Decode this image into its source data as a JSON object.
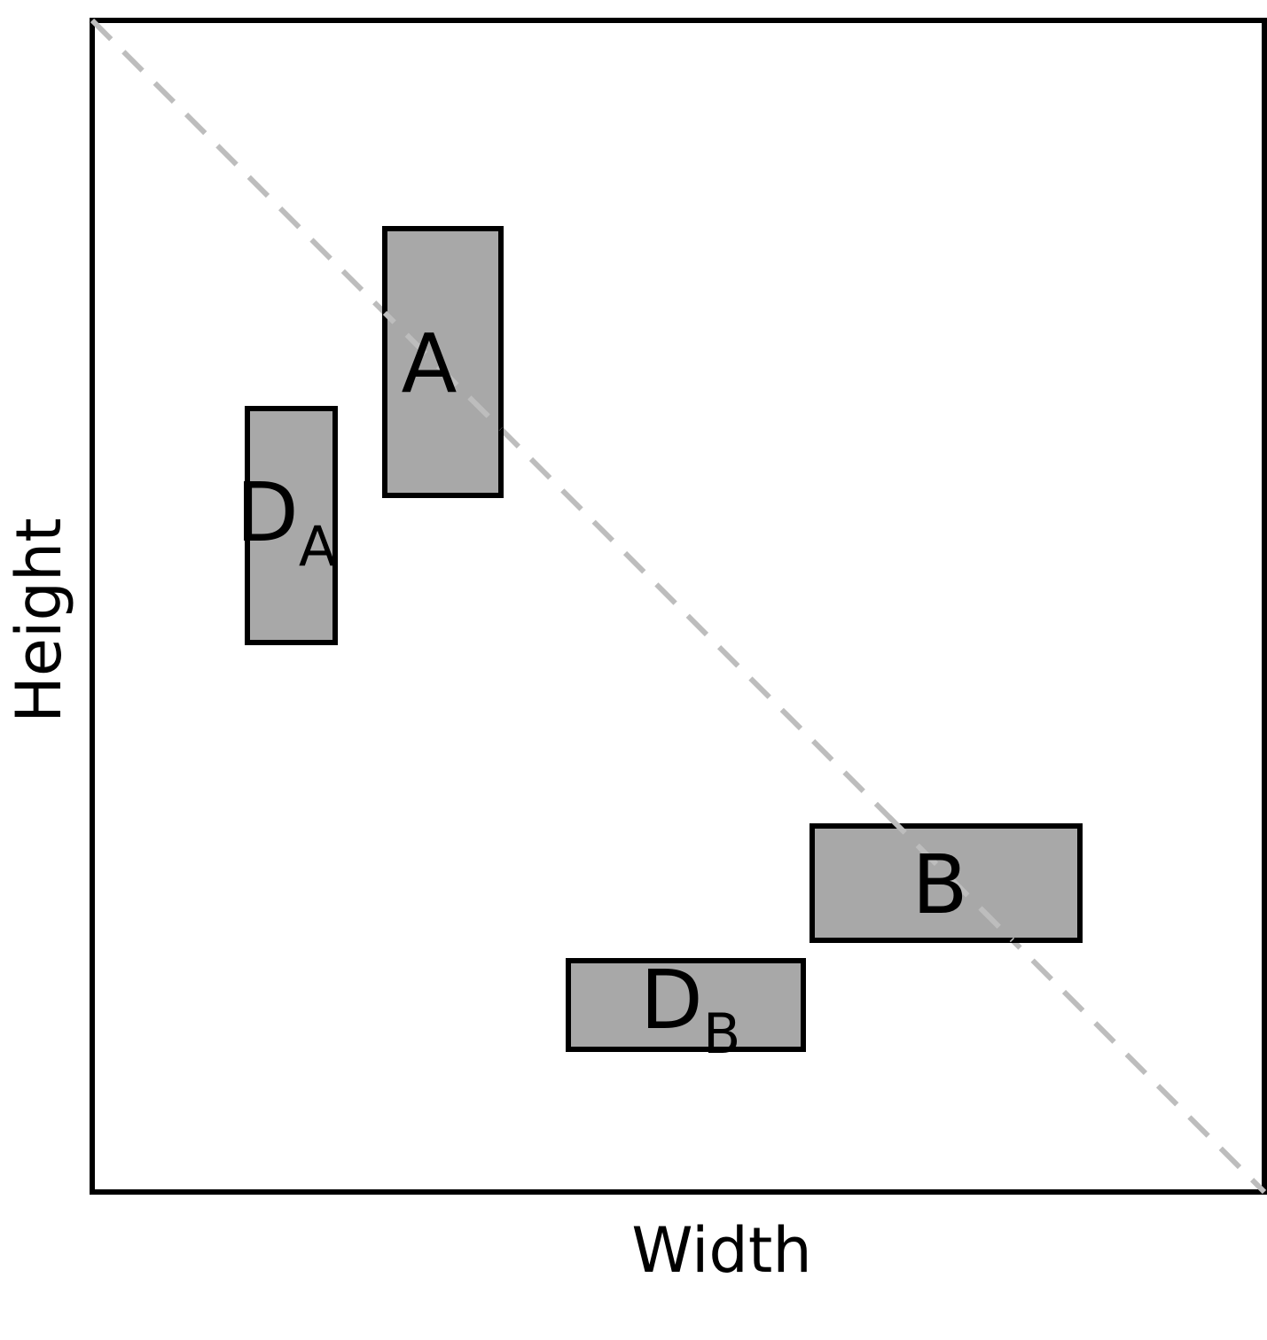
{
  "axes": {
    "x_label": "Width",
    "y_label": "Height"
  },
  "boxes": [
    {
      "id": "a",
      "label": "A",
      "subscript": ""
    },
    {
      "id": "da",
      "label": "D",
      "subscript": "A"
    },
    {
      "id": "b",
      "label": "B",
      "subscript": ""
    },
    {
      "id": "db",
      "label": "D",
      "subscript": "B"
    }
  ],
  "colors": {
    "box_fill": "#a8a8a8",
    "stroke": "#000000",
    "diagonal": "#bdbdbd",
    "background": "#ffffff"
  }
}
